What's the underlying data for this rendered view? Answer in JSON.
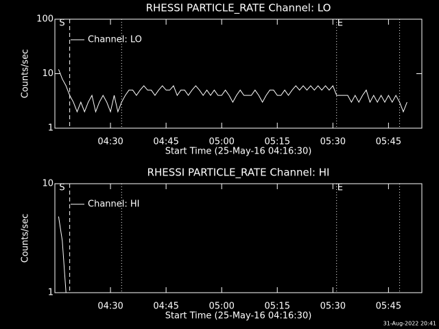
{
  "chart_data": [
    {
      "type": "line",
      "title": "RHESSI PARTICLE_RATE Channel: LO",
      "xlabel": "Start Time (25-May-16 04:16:30)",
      "ylabel": "Counts/sec",
      "log_y": true,
      "ylim": [
        1,
        100
      ],
      "yticks": [
        1,
        10,
        100
      ],
      "xlim": [
        "04:15",
        "05:54"
      ],
      "xticks": [
        "04:30",
        "04:45",
        "05:00",
        "05:15",
        "05:30",
        "05:45"
      ],
      "legend": "upper left",
      "markers": [
        {
          "x": "04:16",
          "label": "S"
        },
        {
          "x": "05:31",
          "label": "E"
        }
      ],
      "vlines": [
        {
          "x": "04:19",
          "style": "dashed"
        },
        {
          "x": "04:33",
          "style": "dotted"
        },
        {
          "x": "05:31",
          "style": "dotted"
        },
        {
          "x": "05:48",
          "style": "dotted"
        }
      ],
      "series": [
        {
          "name": "Channel: LO",
          "color": "#ffffff",
          "x": [
            "04:16",
            "04:17",
            "04:18",
            "04:19",
            "04:20",
            "04:21",
            "04:22",
            "04:23",
            "04:24",
            "04:25",
            "04:26",
            "04:27",
            "04:28",
            "04:29",
            "04:30",
            "04:31",
            "04:32",
            "04:33",
            "04:34",
            "04:35",
            "04:36",
            "04:37",
            "04:38",
            "04:39",
            "04:40",
            "04:41",
            "04:42",
            "04:43",
            "04:44",
            "04:45",
            "04:46",
            "04:47",
            "04:48",
            "04:49",
            "04:50",
            "04:51",
            "04:52",
            "04:53",
            "04:54",
            "04:55",
            "04:56",
            "04:57",
            "04:58",
            "04:59",
            "05:00",
            "05:01",
            "05:02",
            "05:03",
            "05:04",
            "05:05",
            "05:06",
            "05:07",
            "05:08",
            "05:09",
            "05:10",
            "05:11",
            "05:12",
            "05:13",
            "05:14",
            "05:15",
            "05:16",
            "05:17",
            "05:18",
            "05:19",
            "05:20",
            "05:21",
            "05:22",
            "05:23",
            "05:24",
            "05:25",
            "05:26",
            "05:27",
            "05:28",
            "05:29",
            "05:30",
            "05:31",
            "05:32",
            "05:33",
            "05:34",
            "05:35",
            "05:36",
            "05:37",
            "05:38",
            "05:39",
            "05:40",
            "05:41",
            "05:42",
            "05:43",
            "05:44",
            "05:45",
            "05:46",
            "05:47",
            "05:48",
            "05:49",
            "05:50"
          ],
          "values": [
            12,
            8,
            6,
            4,
            3,
            2,
            3,
            2,
            3,
            4,
            2,
            3,
            4,
            3,
            2,
            4,
            2,
            3,
            4,
            5,
            5,
            4,
            5,
            6,
            5,
            5,
            4,
            5,
            6,
            5,
            5,
            6,
            4,
            5,
            5,
            4,
            5,
            6,
            5,
            4,
            5,
            4,
            5,
            4,
            4,
            5,
            4,
            3,
            4,
            5,
            4,
            4,
            4,
            5,
            4,
            3,
            4,
            5,
            5,
            4,
            4,
            5,
            4,
            5,
            6,
            5,
            6,
            5,
            6,
            5,
            6,
            5,
            6,
            5,
            6,
            4,
            4,
            4,
            4,
            3,
            4,
            3,
            4,
            5,
            3,
            4,
            3,
            4,
            3,
            4,
            3,
            4,
            3,
            2,
            3
          ]
        }
      ]
    },
    {
      "type": "line",
      "title": "RHESSI PARTICLE_RATE Channel: HI",
      "xlabel": "Start Time (25-May-16 04:16:30)",
      "ylabel": "Counts/sec",
      "log_y": true,
      "ylim": [
        1,
        10
      ],
      "yticks": [
        1,
        10
      ],
      "xlim": [
        "04:15",
        "05:54"
      ],
      "xticks": [
        "04:30",
        "04:45",
        "05:00",
        "05:15",
        "05:30",
        "05:45"
      ],
      "legend": "upper left",
      "markers": [
        {
          "x": "04:16",
          "label": "S"
        },
        {
          "x": "05:31",
          "label": "E"
        }
      ],
      "vlines": [
        {
          "x": "04:19",
          "style": "dashed"
        },
        {
          "x": "04:33",
          "style": "dotted"
        },
        {
          "x": "05:31",
          "style": "dotted"
        },
        {
          "x": "05:48",
          "style": "dotted"
        }
      ],
      "series": [
        {
          "name": "Channel: HI",
          "color": "#ffffff",
          "x": [
            "04:16",
            "04:17",
            "04:18"
          ],
          "values": [
            5,
            3,
            1
          ]
        }
      ]
    }
  ],
  "footer": "31-Aug-2022 20:41"
}
